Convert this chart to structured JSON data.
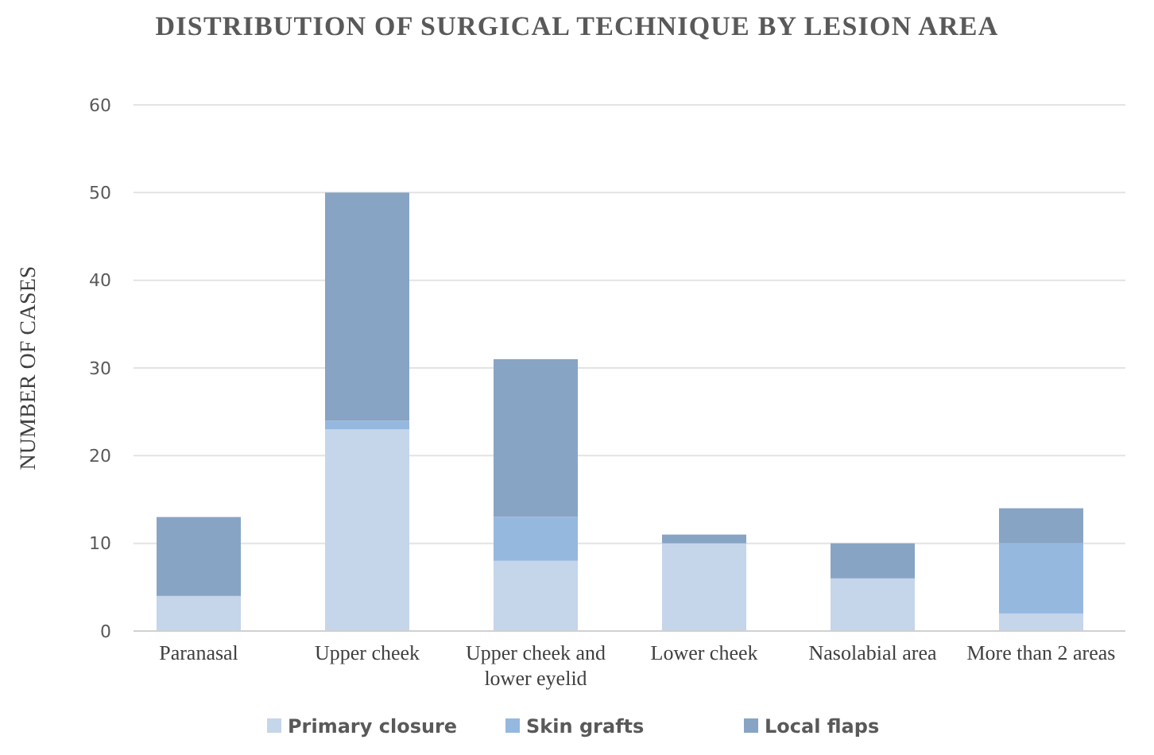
{
  "chart_data": {
    "type": "bar",
    "stacked": true,
    "title": "DISTRIBUTION OF SURGICAL TECHNIQUE BY LESION AREA",
    "ylabel": "NUMBER OF CASES",
    "categories": [
      "Paranasal",
      "Upper cheek",
      "Upper cheek and lower eyelid",
      "Lower cheek",
      "Nasolabial area",
      "More than 2 areas"
    ],
    "series": [
      {
        "name": "Primary closure",
        "color": "#c5d5ea",
        "values": [
          4,
          23,
          8,
          10,
          6,
          2
        ]
      },
      {
        "name": "Skin grafts",
        "color": "#95b8df",
        "values": [
          0,
          1,
          5,
          0,
          0,
          8
        ]
      },
      {
        "name": "Local flaps",
        "color": "#87a4c5",
        "values": [
          9,
          26,
          18,
          1,
          4,
          4
        ]
      }
    ],
    "ylim": [
      0,
      60
    ],
    "yticks": [
      0,
      10,
      20,
      30,
      40,
      50,
      60
    ],
    "grid": "y",
    "legend": "bottom"
  }
}
